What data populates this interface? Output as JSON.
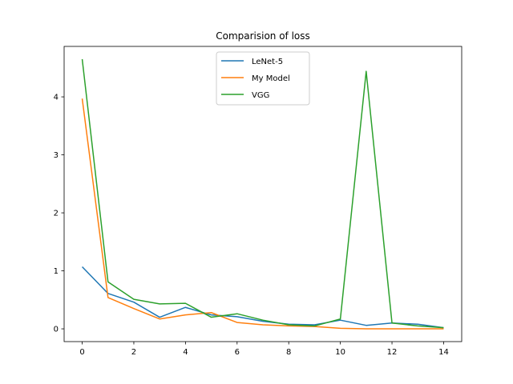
{
  "chart_data": {
    "type": "line",
    "title": "Comparision of loss",
    "xlabel": "",
    "ylabel": "",
    "xlim": [
      -0.7,
      14.7
    ],
    "ylim": [
      -0.22,
      4.87
    ],
    "xticks": [
      0,
      2,
      4,
      6,
      8,
      10,
      12,
      14
    ],
    "yticks": [
      0,
      1,
      2,
      3,
      4
    ],
    "grid": false,
    "legend_position": "top-center",
    "x": [
      0,
      1,
      2,
      3,
      4,
      5,
      6,
      7,
      8,
      9,
      10,
      11,
      12,
      13,
      14
    ],
    "series": [
      {
        "name": "LeNet-5",
        "color": "#1f77b4",
        "values": [
          1.07,
          0.61,
          0.46,
          0.2,
          0.37,
          0.24,
          0.21,
          0.13,
          0.08,
          0.07,
          0.15,
          0.06,
          0.1,
          0.08,
          0.02
        ]
      },
      {
        "name": "My Model",
        "color": "#ff7f0e",
        "values": [
          3.97,
          0.54,
          0.35,
          0.17,
          0.24,
          0.28,
          0.11,
          0.07,
          0.05,
          0.04,
          0.01,
          0.0,
          0.0,
          0.0,
          0.0
        ]
      },
      {
        "name": "VGG",
        "color": "#2ca02c",
        "values": [
          4.65,
          0.81,
          0.51,
          0.43,
          0.44,
          0.2,
          0.26,
          0.15,
          0.07,
          0.05,
          0.17,
          4.44,
          0.1,
          0.05,
          0.02
        ]
      }
    ]
  }
}
